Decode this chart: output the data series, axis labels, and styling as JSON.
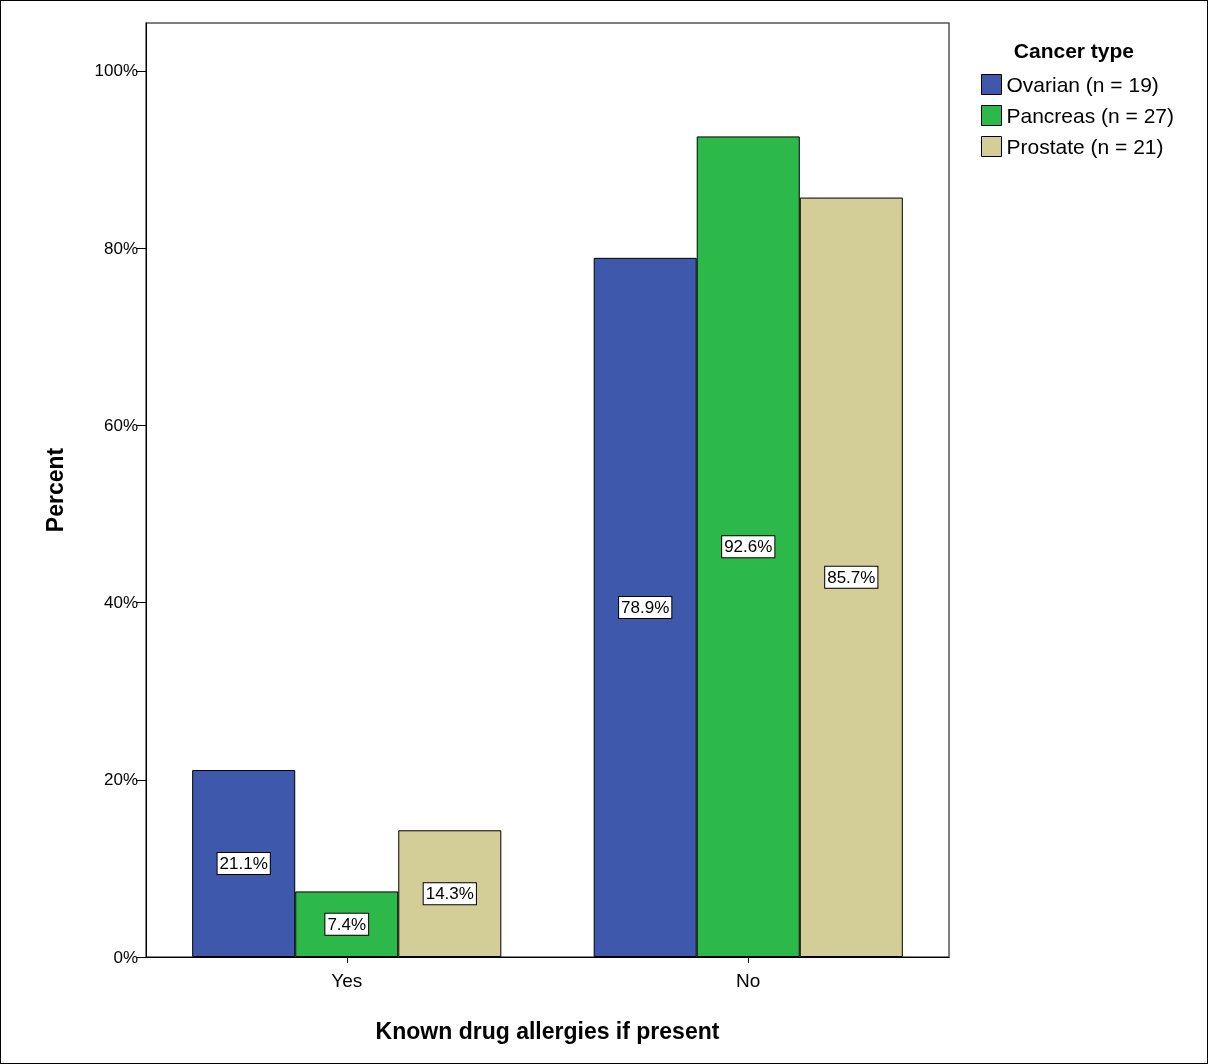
{
  "chart_data": {
    "type": "bar",
    "xlabel": "Known drug allergies if present",
    "ylabel": "Percent",
    "legend_title": "Cancer type",
    "legend": "top right",
    "grid": false,
    "categories": [
      "Yes",
      "No"
    ],
    "series": [
      {
        "name": "Ovarian (n = 19)",
        "color": "#3e58ac",
        "values": [
          21.1,
          78.9
        ],
        "value_labels": [
          "21.1%",
          "78.9%"
        ]
      },
      {
        "name": "Pancreas (n = 27)",
        "color": "#2db84a",
        "values": [
          7.4,
          92.6
        ],
        "value_labels": [
          "7.4%",
          "92.6%"
        ]
      },
      {
        "name": "Prostate (n = 21)",
        "color": "#d3ce97",
        "values": [
          14.3,
          85.7
        ],
        "value_labels": [
          "14.3%",
          "85.7%"
        ]
      }
    ],
    "ylim": [
      0,
      105.4
    ],
    "yticks": [
      {
        "value": 0,
        "label": "0%"
      },
      {
        "value": 20,
        "label": "20%"
      },
      {
        "value": 40,
        "label": "40%"
      },
      {
        "value": 60,
        "label": "60%"
      },
      {
        "value": 80,
        "label": "80%"
      },
      {
        "value": 100,
        "label": "100%"
      }
    ]
  }
}
